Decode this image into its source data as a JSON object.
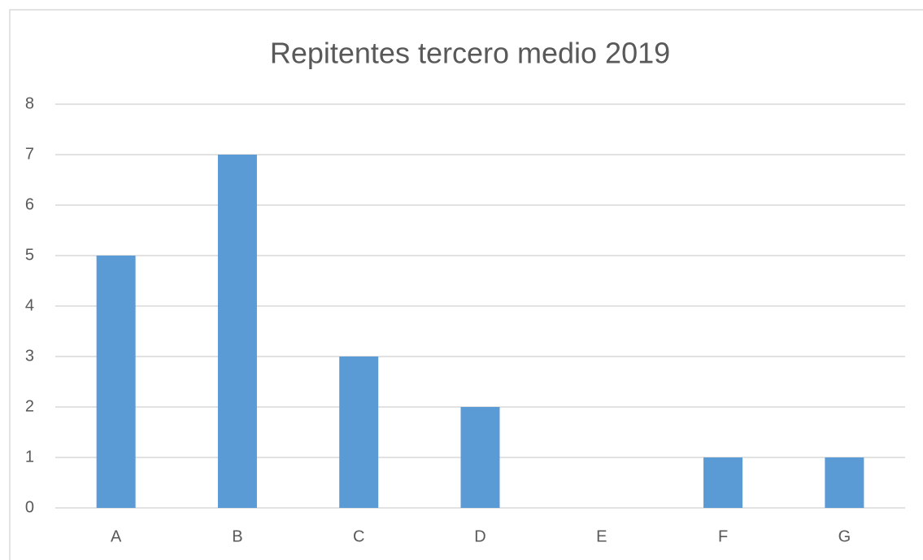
{
  "chart_data": {
    "type": "bar",
    "title": "Repitentes tercero medio 2019",
    "categories": [
      "A",
      "B",
      "C",
      "D",
      "E",
      "F",
      "G"
    ],
    "values": [
      5,
      7,
      3,
      2,
      0,
      1,
      1
    ],
    "color": "#5b9bd5",
    "ylim": [
      0,
      8
    ],
    "yticks": [
      0,
      1,
      2,
      3,
      4,
      5,
      6,
      7,
      8
    ],
    "grid": true
  }
}
